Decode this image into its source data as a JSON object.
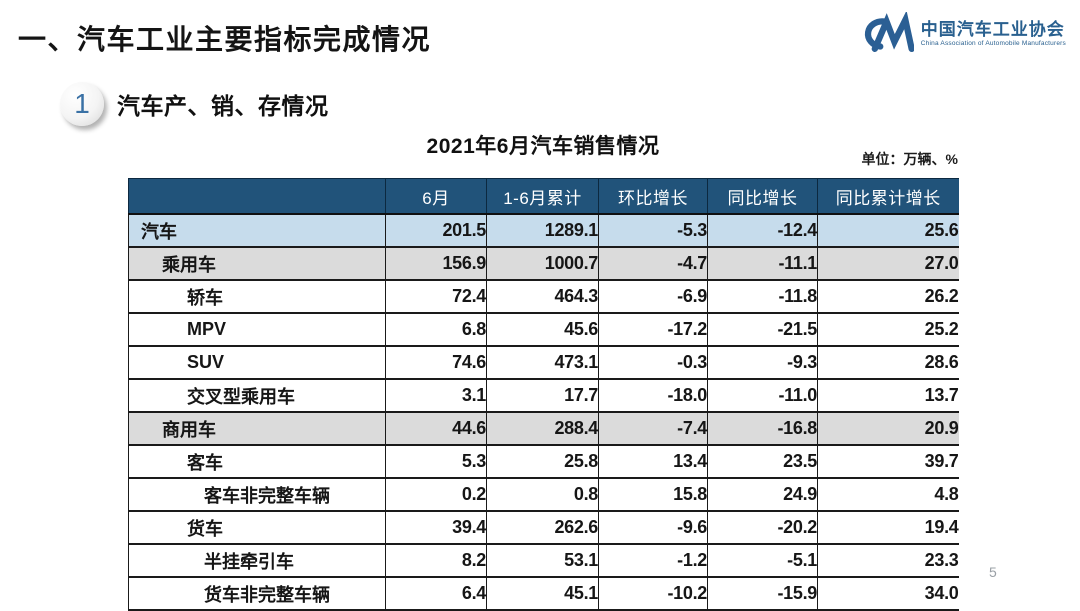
{
  "slide": {
    "title": "一、汽车工业主要指标完成情况",
    "page_number": "5"
  },
  "logo": {
    "monogram_icon": "cam-swoosh-CM",
    "name_cn": "中国汽车工业协会",
    "name_en": "China Association of Automobile Manufacturers",
    "brand_color": "#2B5F94"
  },
  "section": {
    "number": "1",
    "label": "汽车产、销、存情况"
  },
  "table": {
    "title": "2021年6月汽车销售情况",
    "unit_label": "单位：万辆、%",
    "columns": [
      "",
      "6月",
      "1-6月累计",
      "环比增长",
      "同比增长",
      "同比累计增长"
    ],
    "colors": {
      "header_bg": "#21537A",
      "total_row_bg": "#C6DCEC",
      "group_row_bg": "#DBDBDB",
      "border": "#1a1a1a"
    },
    "rows": [
      {
        "label": "汽车",
        "level": 0,
        "style": "blue",
        "values": [
          "201.5",
          "1289.1",
          "-5.3",
          "-12.4",
          "25.6"
        ]
      },
      {
        "label": "乘用车",
        "level": 1,
        "style": "gray",
        "values": [
          "156.9",
          "1000.7",
          "-4.7",
          "-11.1",
          "27.0"
        ]
      },
      {
        "label": "轿车",
        "level": 2,
        "style": "white",
        "values": [
          "72.4",
          "464.3",
          "-6.9",
          "-11.8",
          "26.2"
        ]
      },
      {
        "label": "MPV",
        "level": 2,
        "style": "white",
        "values": [
          "6.8",
          "45.6",
          "-17.2",
          "-21.5",
          "25.2"
        ]
      },
      {
        "label": "SUV",
        "level": 2,
        "style": "white",
        "values": [
          "74.6",
          "473.1",
          "-0.3",
          "-9.3",
          "28.6"
        ]
      },
      {
        "label": "交叉型乘用车",
        "level": 2,
        "style": "white",
        "values": [
          "3.1",
          "17.7",
          "-18.0",
          "-11.0",
          "13.7"
        ]
      },
      {
        "label": "商用车",
        "level": 1,
        "style": "gray",
        "values": [
          "44.6",
          "288.4",
          "-7.4",
          "-16.8",
          "20.9"
        ]
      },
      {
        "label": "客车",
        "level": 2,
        "style": "white",
        "values": [
          "5.3",
          "25.8",
          "13.4",
          "23.5",
          "39.7"
        ]
      },
      {
        "label": "客车非完整车辆",
        "level": 3,
        "style": "white",
        "values": [
          "0.2",
          "0.8",
          "15.8",
          "24.9",
          "4.8"
        ]
      },
      {
        "label": "货车",
        "level": 2,
        "style": "white",
        "values": [
          "39.4",
          "262.6",
          "-9.6",
          "-20.2",
          "19.4"
        ]
      },
      {
        "label": "半挂牵引车",
        "level": 3,
        "style": "white",
        "values": [
          "8.2",
          "53.1",
          "-1.2",
          "-5.1",
          "23.3"
        ]
      },
      {
        "label": "货车非完整车辆",
        "level": 3,
        "style": "white",
        "values": [
          "6.4",
          "45.1",
          "-10.2",
          "-15.9",
          "34.0"
        ]
      }
    ]
  }
}
